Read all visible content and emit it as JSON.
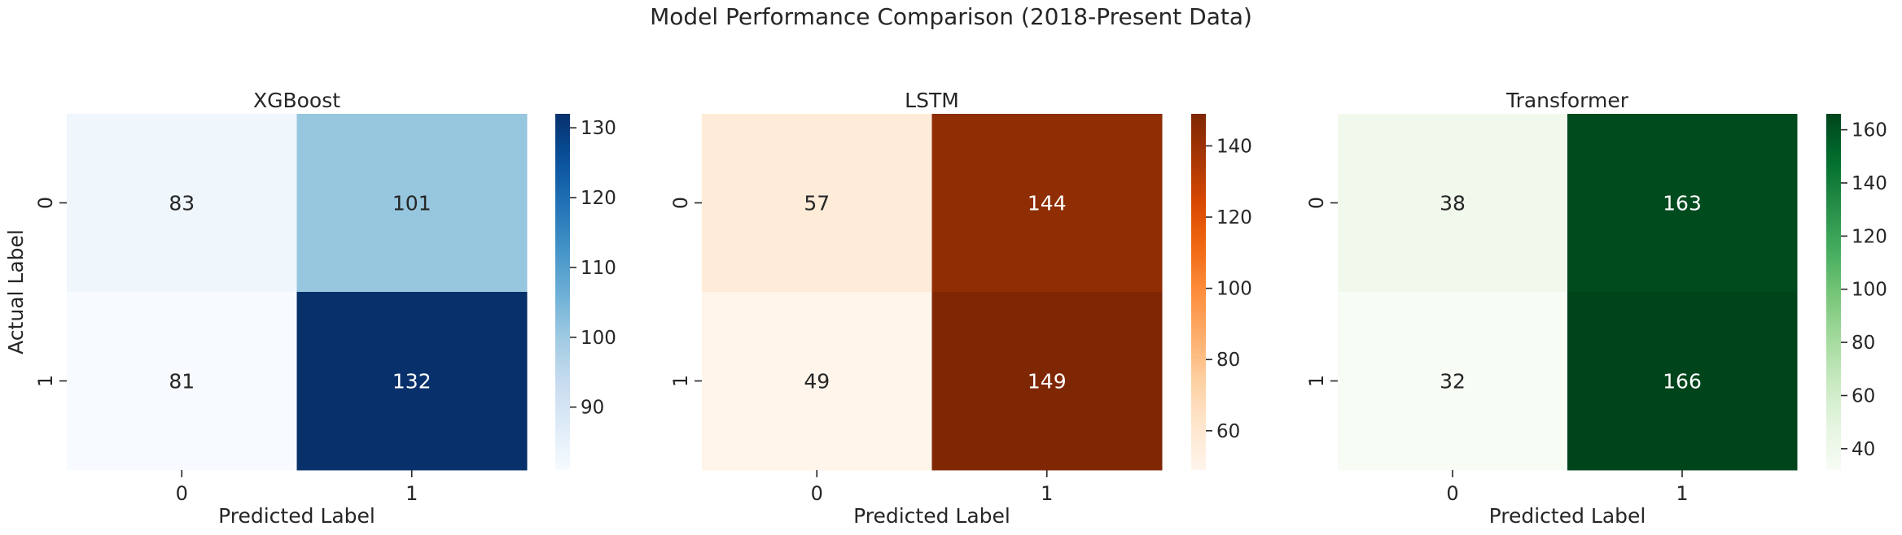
{
  "title": "Model Performance Comparison (2018-Present Data)",
  "chart_data": [
    {
      "type": "heatmap",
      "title": "XGBoost",
      "xlabel": "Predicted Label",
      "ylabel": "Actual Label",
      "x_categories": [
        "0",
        "1"
      ],
      "y_categories": [
        "0",
        "1"
      ],
      "values": [
        [
          83,
          101
        ],
        [
          81,
          132
        ]
      ],
      "colormap": "Blues",
      "colorbar": {
        "range": [
          81,
          132
        ],
        "ticks": [
          "90",
          "100",
          "110",
          "120",
          "130"
        ]
      }
    },
    {
      "type": "heatmap",
      "title": "LSTM",
      "xlabel": "Predicted Label",
      "ylabel": "",
      "x_categories": [
        "0",
        "1"
      ],
      "y_categories": [
        "0",
        "1"
      ],
      "values": [
        [
          57,
          144
        ],
        [
          49,
          149
        ]
      ],
      "colormap": "Oranges",
      "colorbar": {
        "range": [
          49,
          149
        ],
        "ticks": [
          "60",
          "80",
          "100",
          "120",
          "140"
        ]
      }
    },
    {
      "type": "heatmap",
      "title": "Transformer",
      "xlabel": "Predicted Label",
      "ylabel": "",
      "x_categories": [
        "0",
        "1"
      ],
      "y_categories": [
        "0",
        "1"
      ],
      "values": [
        [
          38,
          163
        ],
        [
          32,
          166
        ]
      ],
      "colormap": "Greens",
      "colorbar": {
        "range": [
          32,
          166
        ],
        "ticks": [
          "40",
          "60",
          "80",
          "100",
          "120",
          "140",
          "160"
        ]
      }
    }
  ]
}
